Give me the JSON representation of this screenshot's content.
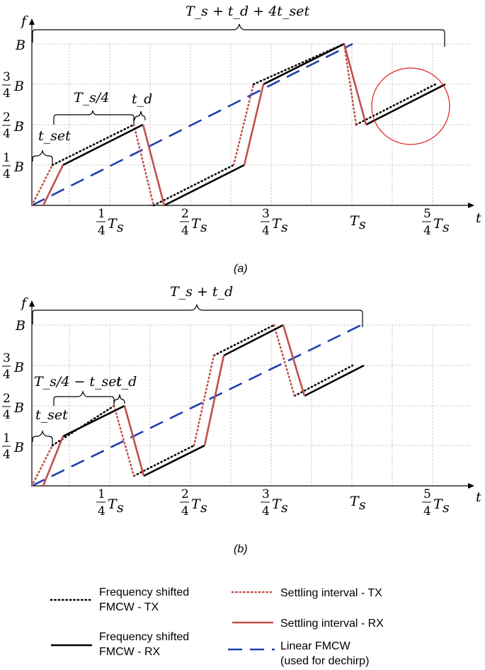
{
  "axes": {
    "y_symbol": "f",
    "x_symbol": "t",
    "B": "B",
    "Ts": "T",
    "Ts_sub": "s",
    "fractions": [
      {
        "num": "1",
        "den": "4"
      },
      {
        "num": "2",
        "den": "4"
      },
      {
        "num": "3",
        "den": "4"
      },
      {
        "num": "5",
        "den": "4"
      }
    ]
  },
  "panel_a": {
    "caption": "(a)",
    "span_label": "T_s + t_d + 4t_set",
    "segment_label": "T_s/4",
    "td_label": "t_d",
    "tset_label": "t_set"
  },
  "panel_b": {
    "caption": "(b)",
    "span_label": "T_s + t_d",
    "segment_label": "T_s/4 − t_set",
    "td_label": "t_d",
    "tset_label": "t_set"
  },
  "legend": {
    "items": [
      {
        "key": "tx",
        "line1": "Frequency shifted",
        "line2": "FMCW - TX"
      },
      {
        "key": "rx",
        "line1": "Frequency shifted",
        "line2": "FMCW - RX"
      },
      {
        "key": "stx",
        "line1": "Settling interval - TX",
        "line2": ""
      },
      {
        "key": "srx",
        "line1": "Settling interval - RX",
        "line2": ""
      },
      {
        "key": "lin",
        "line1": "Linear FMCW",
        "line2": "(used for dechirp)"
      }
    ]
  },
  "colors": {
    "settling": "#c0504d",
    "linear": "#1f3fb0",
    "highlight_circle": "#e02020"
  }
}
